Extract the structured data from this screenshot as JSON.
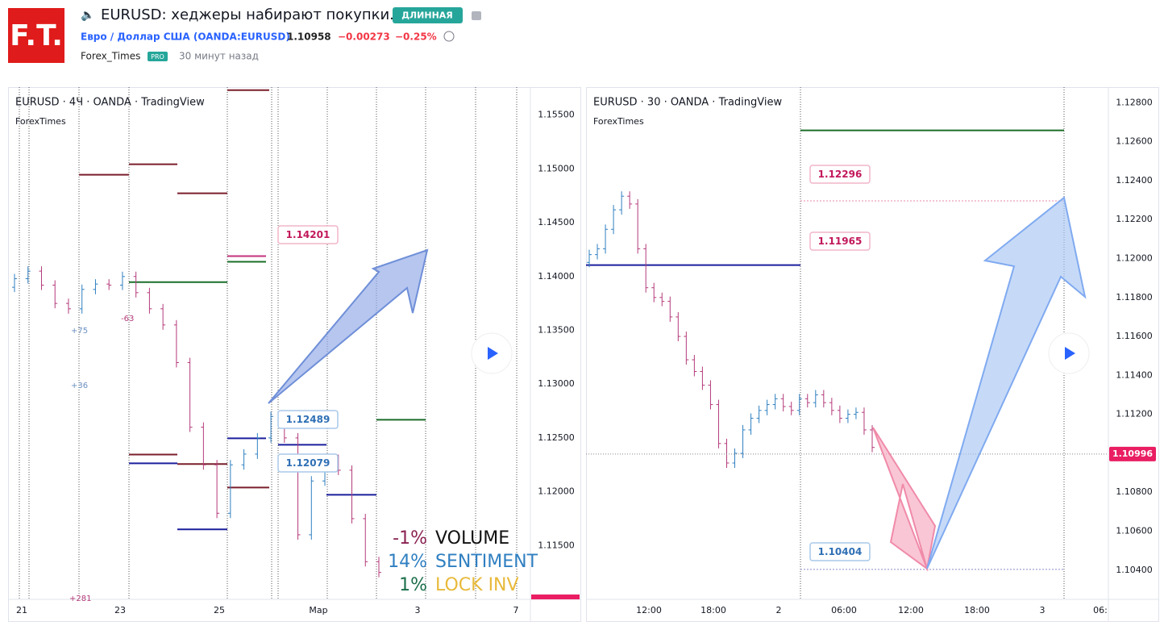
{
  "header": {
    "logo": "F.T.",
    "title": "EURUSD: хеджеры набирают покупки.",
    "badge": "ДЛИННАЯ",
    "symbol": "Евро / Доллар США (OANDA:EURUSD)",
    "price": 1.10958,
    "change": "−0.00273",
    "change_pct": "−0.25%",
    "author": "Forex_Times",
    "author_badge": "PRO",
    "time": "30 минут назад"
  },
  "charts": [
    {
      "type": "bar",
      "title": "EURUSD · 4Ч · OANDA · TradingView",
      "subtitle": "ForexTimes",
      "ylim": [
        1.11,
        1.1576
      ],
      "yticks": [
        {
          "value": 1.155,
          "label": "1.15500"
        },
        {
          "value": 1.15,
          "label": "1.15000"
        },
        {
          "value": 1.145,
          "label": "1.14500"
        },
        {
          "value": 1.14,
          "label": "1.14000"
        },
        {
          "value": 1.135,
          "label": "1.13500"
        },
        {
          "value": 1.13,
          "label": "1.13000"
        },
        {
          "value": 1.125,
          "label": "1.12500"
        },
        {
          "value": 1.12,
          "label": "1.12000"
        },
        {
          "value": 1.115,
          "label": "1.11500"
        }
      ],
      "xlabels": [
        "21",
        "23",
        "25",
        "Мар",
        "3",
        "7"
      ],
      "candles": [
        [
          1.139,
          1.1398
        ],
        [
          1.1398,
          1.1405
        ],
        [
          1.1405,
          1.1392
        ],
        [
          1.1392,
          1.1375
        ],
        [
          1.1375,
          1.137
        ],
        [
          1.137,
          1.1388
        ],
        [
          1.1388,
          1.1393
        ],
        [
          1.1393,
          1.1392
        ],
        [
          1.1392,
          1.14
        ],
        [
          1.14,
          1.1385
        ],
        [
          1.1385,
          1.137
        ],
        [
          1.137,
          1.1355
        ],
        [
          1.1355,
          1.132
        ],
        [
          1.132,
          1.126
        ],
        [
          1.126,
          1.1225
        ],
        [
          1.1225,
          1.118
        ],
        [
          1.118,
          1.1225
        ],
        [
          1.1225,
          1.1235
        ],
        [
          1.1235,
          1.125
        ],
        [
          1.125,
          1.127
        ],
        [
          1.127,
          1.125
        ],
        [
          1.125,
          1.116
        ],
        [
          1.116,
          1.121
        ],
        [
          1.121,
          1.123
        ],
        [
          1.123,
          1.122
        ],
        [
          1.122,
          1.1175
        ],
        [
          1.1175,
          1.1135
        ],
        [
          1.1135,
          1.1125
        ]
      ],
      "levels": [
        {
          "value": 1.15732,
          "color": "#7a1f2b"
        },
        {
          "value": 1.14946,
          "color": "#7a1f2b"
        },
        {
          "value": 1.15043,
          "color": "#7a1f2b"
        },
        {
          "value": 1.14773,
          "color": "#7a1f2b"
        },
        {
          "value": 1.1419,
          "color": "#c2327a"
        },
        {
          "value": 1.14137,
          "color": "#1b6e2a"
        },
        {
          "value": 1.13948,
          "color": "#1b6e2a"
        },
        {
          "value": 1.13948,
          "color": "#1b6e2a"
        },
        {
          "value": 1.12496,
          "color": "#1a1f9c"
        },
        {
          "value": 1.12436,
          "color": "#1a1f9c"
        },
        {
          "value": 1.12257,
          "color": "#7a1f2b"
        },
        {
          "value": 1.12264,
          "color": "#1a1f9c"
        },
        {
          "value": 1.12346,
          "color": "#7a1f2b"
        },
        {
          "value": 1.12039,
          "color": "#7a1f2b"
        },
        {
          "value": 1.11972,
          "color": "#1a1f9c"
        },
        {
          "value": 1.1165,
          "color": "#1a1f9c"
        },
        {
          "value": 1.12669,
          "color": "#1b6e2a"
        }
      ],
      "price_labels": [
        1.14201,
        1.12489,
        1.12079
      ],
      "current": 1.10996,
      "annotations": [
        "+75",
        "-63",
        "+36",
        "+281"
      ],
      "indicators": [
        {
          "value": {
            "value": -1,
            "label": "-1%"
          },
          "name": "VOLUME",
          "color": "#111111",
          "vcolor": "#8a2352"
        },
        {
          "value": {
            "value": 14,
            "label": "14%"
          },
          "name": "SENTIMENT",
          "color": "#2f7fc1",
          "vcolor": "#2f7fc1"
        },
        {
          "value": {
            "value": 1,
            "label": "1%"
          },
          "name": "LOCK INV",
          "color": "#e8b93a",
          "vcolor": "#1b6e4a"
        }
      ]
    },
    {
      "type": "bar",
      "title": "EURUSD · 30 · OANDA · TradingView",
      "subtitle": "ForexTimes",
      "ylim": [
        1.1025,
        1.1288
      ],
      "yticks": [
        {
          "value": 1.128,
          "label": "1.12800"
        },
        {
          "value": 1.126,
          "label": "1.12600"
        },
        {
          "value": 1.124,
          "label": "1.12400"
        },
        {
          "value": 1.122,
          "label": "1.12200"
        },
        {
          "value": 1.12,
          "label": "1.12000"
        },
        {
          "value": 1.118,
          "label": "1.11800"
        },
        {
          "value": 1.116,
          "label": "1.11600"
        },
        {
          "value": 1.114,
          "label": "1.11400"
        },
        {
          "value": 1.112,
          "label": "1.11200"
        },
        {
          "value": 1.11,
          "label": "1.11000"
        },
        {
          "value": 1.108,
          "label": "1.10800"
        },
        {
          "value": 1.106,
          "label": "1.10600"
        },
        {
          "value": 1.104,
          "label": "1.10400"
        }
      ],
      "xlabels": [
        "12:00",
        "18:00",
        "2",
        "06:00",
        "12:00",
        "18:00",
        "3",
        "06:"
      ],
      "candles": [
        [
          1.1198,
          1.1202
        ],
        [
          1.1202,
          1.1205
        ],
        [
          1.1205,
          1.1215
        ],
        [
          1.1215,
          1.1225
        ],
        [
          1.1225,
          1.1232
        ],
        [
          1.1232,
          1.1228
        ],
        [
          1.1228,
          1.1205
        ],
        [
          1.1205,
          1.1185
        ],
        [
          1.1185,
          1.118
        ],
        [
          1.118,
          1.1178
        ],
        [
          1.1178,
          1.117
        ],
        [
          1.117,
          1.116
        ],
        [
          1.116,
          1.1148
        ],
        [
          1.1148,
          1.1142
        ],
        [
          1.1142,
          1.1135
        ],
        [
          1.1135,
          1.1125
        ],
        [
          1.1125,
          1.1105
        ],
        [
          1.1105,
          1.1095
        ],
        [
          1.1095,
          1.11
        ],
        [
          1.11,
          1.1112
        ],
        [
          1.1112,
          1.1118
        ],
        [
          1.1118,
          1.1122
        ],
        [
          1.1122,
          1.1125
        ],
        [
          1.1125,
          1.1128
        ],
        [
          1.1128,
          1.1124
        ],
        [
          1.1124,
          1.1122
        ],
        [
          1.1122,
          1.1128
        ],
        [
          1.1128,
          1.1126
        ],
        [
          1.1126,
          1.113
        ],
        [
          1.113,
          1.1126
        ],
        [
          1.1126,
          1.1122
        ],
        [
          1.1122,
          1.1118
        ],
        [
          1.1118,
          1.112
        ],
        [
          1.112,
          1.1121
        ],
        [
          1.1121,
          1.1112
        ],
        [
          1.1112,
          1.1103
        ]
      ],
      "levels": [
        {
          "value": 1.12658,
          "color": "#1b6e2a"
        },
        {
          "value": 1.11966,
          "color": "#1a1f9c"
        },
        {
          "value": 1.12296,
          "color": "#e48aa8"
        },
        {
          "value": 1.10404,
          "color": "#8a8ac8"
        }
      ],
      "price_labels": [
        1.12296,
        1.11965,
        1.10404
      ],
      "current": 1.10996
    }
  ]
}
